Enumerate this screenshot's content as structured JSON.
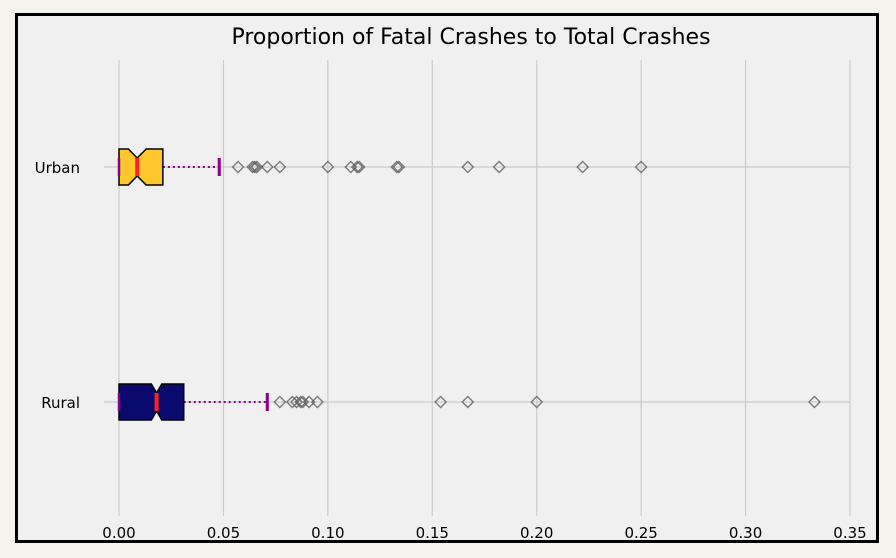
{
  "chart_data": {
    "type": "boxplot",
    "orientation": "horizontal",
    "notched": true,
    "title": "Proportion of Fatal Crashes to Total Crashes",
    "xlabel": "",
    "ylabel": "",
    "xlim": [
      -0.035,
      0.35
    ],
    "xticks": [
      0.0,
      0.05,
      0.1,
      0.15,
      0.2,
      0.25,
      0.3,
      0.35
    ],
    "xtick_labels": [
      "0.00",
      "0.05",
      "0.10",
      "0.15",
      "0.20",
      "0.25",
      "0.30",
      "0.35"
    ],
    "grid": true,
    "categories": [
      "Urban",
      "Rural"
    ],
    "series": [
      {
        "category": "Urban",
        "color": "#ffc72c",
        "q1": 0.0,
        "median": 0.0087,
        "q3": 0.021,
        "notch_low": 0.0045,
        "notch_high": 0.013,
        "whisker_low": 0.0,
        "whisker_high": 0.048,
        "outliers": [
          0.057,
          0.064,
          0.065,
          0.066,
          0.071,
          0.077,
          0.1,
          0.111,
          0.114,
          0.115,
          0.133,
          0.134,
          0.167,
          0.182,
          0.222,
          0.25
        ]
      },
      {
        "category": "Rural",
        "color": "#0a0a6e",
        "q1": 0.0,
        "median": 0.018,
        "q3": 0.031,
        "notch_low": 0.0155,
        "notch_high": 0.0205,
        "whisker_low": 0.0,
        "whisker_high": 0.071,
        "outliers": [
          0.077,
          0.083,
          0.085,
          0.087,
          0.088,
          0.091,
          0.095,
          0.154,
          0.167,
          0.2,
          0.333
        ]
      }
    ],
    "median_color": "#ff2020",
    "whisker_color": "#8b008b",
    "flier_color": "#555555"
  }
}
